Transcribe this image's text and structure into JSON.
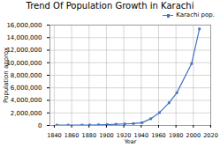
{
  "chart_data": {
    "type": "line",
    "title": "Trend Of Population Growth in Karachi",
    "xlabel": "Year",
    "ylabel": "Population approx",
    "x": [
      1843,
      1856,
      1872,
      1881,
      1891,
      1901,
      1911,
      1921,
      1931,
      1941,
      1951,
      1961,
      1972,
      1981,
      1998,
      2007
    ],
    "series": [
      {
        "name": "Karachi pop.",
        "color": "#4472c4",
        "marker": "square",
        "values": [
          56875,
          56753,
          56000,
          73560,
          105199,
          136297,
          186771,
          244162,
          300799,
          435887,
          1068459,
          2044044,
          3606061,
          5208132,
          9856318,
          15400000
        ]
      }
    ],
    "xlim": [
      1835,
      2020
    ],
    "xticks": [
      1840,
      1860,
      1880,
      1900,
      1920,
      1940,
      1960,
      1980,
      2000,
      2020
    ],
    "ylim": [
      0,
      16000000
    ],
    "yticks": [
      0,
      {
        "value": 2000000,
        "label": "2,000,000"
      },
      {
        "value": 4000000,
        "label": "4,000,000"
      },
      {
        "value": 6000000,
        "label": "6,000,000"
      },
      {
        "value": 8000000,
        "label": "8,000,000"
      },
      {
        "value": 10000000,
        "label": "10,000,000"
      },
      {
        "value": 12000000,
        "label": "12,000,000"
      },
      {
        "value": 14000000,
        "label": "14,000,000"
      },
      {
        "value": 16000000,
        "label": "16,000,000"
      }
    ],
    "grid": true,
    "legend": "right"
  }
}
